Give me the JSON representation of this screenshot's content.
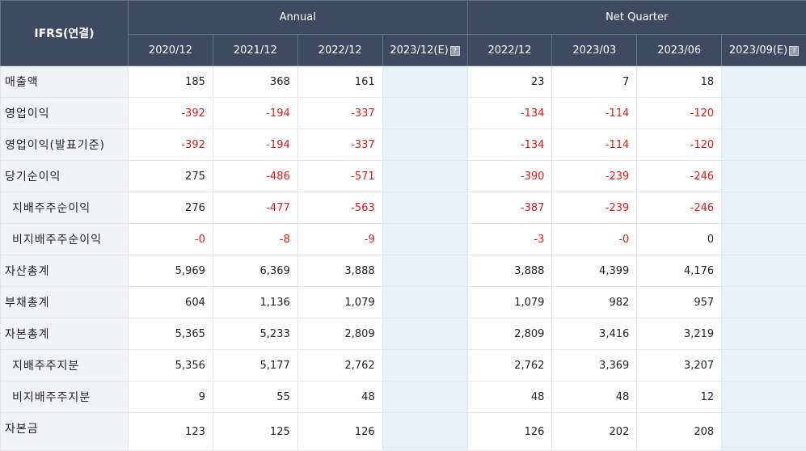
{
  "header": {
    "corner_label": "IFRS(연결)",
    "groups": {
      "annual": "Annual",
      "quarter": "Net Quarter"
    },
    "annual_periods": [
      "2020/12",
      "2021/12",
      "2022/12",
      "2023/12(E)"
    ],
    "quarter_periods": [
      "2022/12",
      "2023/03",
      "2023/06",
      "2023/09(E)"
    ],
    "info_icon": "question-icon"
  },
  "colors": {
    "header_bg": "#3d4a60",
    "label_bg": "#f1f3f6",
    "estimate_bg": "#e7f1fa",
    "negative": "#e21a1a"
  },
  "rows": [
    {
      "label": "매출액",
      "indent": false,
      "annual": [
        "185",
        "368",
        "161",
        ""
      ],
      "quarter": [
        "23",
        "7",
        "18",
        ""
      ]
    },
    {
      "label": "영업이익",
      "indent": false,
      "annual": [
        "-392",
        "-194",
        "-337",
        ""
      ],
      "quarter": [
        "-134",
        "-114",
        "-120",
        ""
      ]
    },
    {
      "label": "영업이익(발표기준)",
      "indent": false,
      "annual": [
        "-392",
        "-194",
        "-337",
        ""
      ],
      "quarter": [
        "-134",
        "-114",
        "-120",
        ""
      ]
    },
    {
      "label": "당기순이익",
      "indent": false,
      "annual": [
        "275",
        "-486",
        "-571",
        ""
      ],
      "quarter": [
        "-390",
        "-239",
        "-246",
        ""
      ]
    },
    {
      "label": "지배주주순이익",
      "indent": true,
      "annual": [
        "276",
        "-477",
        "-563",
        ""
      ],
      "quarter": [
        "-387",
        "-239",
        "-246",
        ""
      ]
    },
    {
      "label": "비지배주주순이익",
      "indent": true,
      "annual": [
        "-0",
        "-8",
        "-9",
        ""
      ],
      "quarter": [
        "-3",
        "-0",
        "0",
        ""
      ]
    },
    {
      "label": "자산총계",
      "indent": false,
      "annual": [
        "5,969",
        "6,369",
        "3,888",
        ""
      ],
      "quarter": [
        "3,888",
        "4,399",
        "4,176",
        ""
      ]
    },
    {
      "label": "부채총계",
      "indent": false,
      "annual": [
        "604",
        "1,136",
        "1,079",
        ""
      ],
      "quarter": [
        "1,079",
        "982",
        "957",
        ""
      ]
    },
    {
      "label": "자본총계",
      "indent": false,
      "annual": [
        "5,365",
        "5,233",
        "2,809",
        ""
      ],
      "quarter": [
        "2,809",
        "3,416",
        "3,219",
        ""
      ]
    },
    {
      "label": "지배주주지분",
      "indent": true,
      "annual": [
        "5,356",
        "5,177",
        "2,762",
        ""
      ],
      "quarter": [
        "2,762",
        "3,369",
        "3,207",
        ""
      ]
    },
    {
      "label": "비지배주주지분",
      "indent": true,
      "annual": [
        "9",
        "55",
        "48",
        ""
      ],
      "quarter": [
        "48",
        "48",
        "12",
        ""
      ]
    },
    {
      "label": "자본금",
      "indent": false,
      "annual": [
        "123",
        "125",
        "126",
        ""
      ],
      "quarter": [
        "126",
        "202",
        "208",
        ""
      ]
    }
  ]
}
